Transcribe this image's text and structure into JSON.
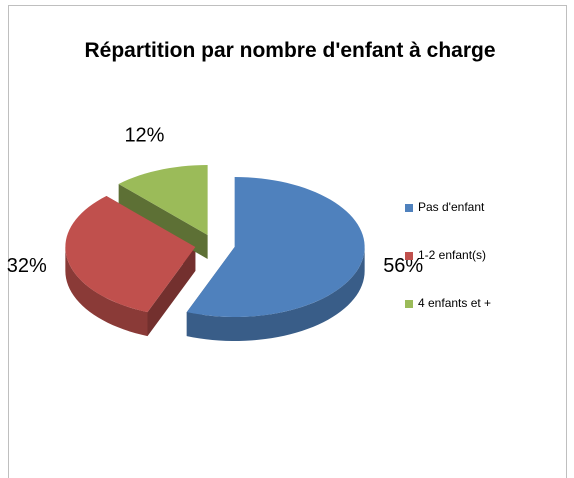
{
  "chart_data": {
    "type": "pie",
    "title": "Répartition par nombre d'enfant à charge",
    "categories": [
      "Pas d'enfant",
      "1-2 enfant(s)",
      "4 enfants et +"
    ],
    "values": [
      56,
      32,
      12
    ],
    "value_labels": [
      "56%",
      "32%",
      "12%"
    ],
    "colors": [
      "#4f81bd",
      "#c0504d",
      "#9bbb59"
    ],
    "legend": "right"
  }
}
